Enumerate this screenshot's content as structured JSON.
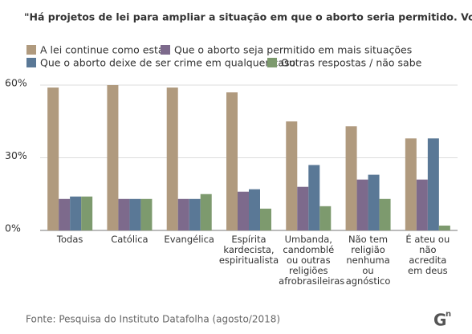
{
  "chart_data": {
    "type": "bar",
    "title": "\"Há projetos de lei para ampliar a situação em que o aborto seria permitido. Você é a favor que:\"",
    "categories": [
      "Todas",
      "Católica",
      "Evangélica",
      "Espírita\nkardecista,\nespiritualista",
      "Umbanda,\ncandomblé\nou outras\nreligiões\nafrobrasileiras",
      "Não tem\nreligião\nnenhuma\nou\nagnóstico",
      "É ateu ou\nnão\nacredita\nem deus"
    ],
    "series": [
      {
        "name": "A lei continue como está",
        "color": "#b09a7e",
        "values": [
          59,
          60,
          59,
          57,
          45,
          43,
          38
        ]
      },
      {
        "name": "Que o aborto seja permitido em mais situações",
        "color": "#7d6a8c",
        "values": [
          13,
          13,
          13,
          16,
          18,
          21,
          21
        ]
      },
      {
        "name": "Que o aborto deixe de ser crime em qualquer caso",
        "color": "#5a7896",
        "values": [
          14,
          13,
          13,
          17,
          27,
          23,
          38
        ]
      },
      {
        "name": "Outras respostas / não sabe",
        "color": "#7d9a6e",
        "values": [
          14,
          13,
          15,
          9,
          10,
          13,
          2
        ]
      }
    ],
    "ylim": [
      0,
      60
    ],
    "yticks": [
      {
        "value": 0,
        "label": "0%"
      },
      {
        "value": 30,
        "label": "30%"
      },
      {
        "value": 60,
        "label": "60%"
      }
    ],
    "grid": true,
    "source": "Fonte: Pesquisa do Instituto Datafolha (agosto/2018)",
    "logo": "G",
    "logo_sup": "n"
  }
}
